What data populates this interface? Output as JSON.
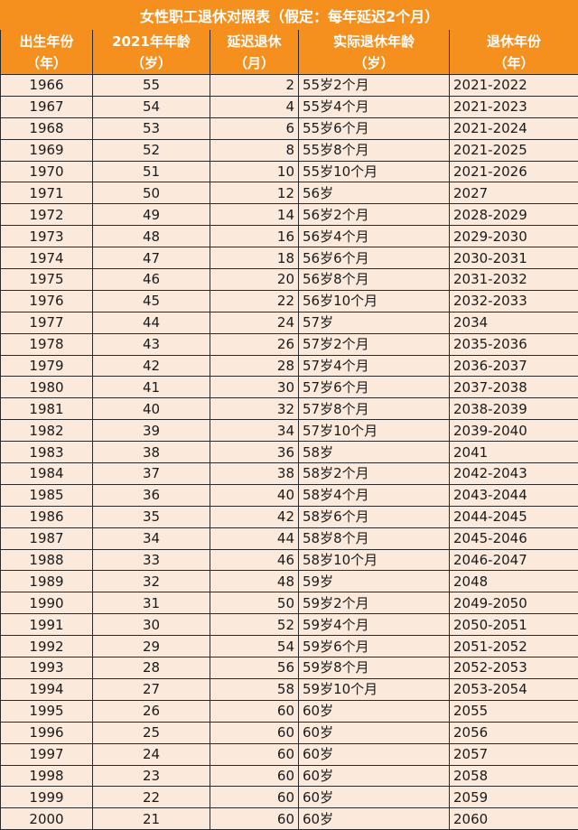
{
  "title": "女性职工退休对照表（假定：每年延迟2个月）",
  "colors": {
    "header_bg": "#f5901e",
    "row_bg": "#fbe9dc"
  },
  "headers": [
    [
      "出生年份",
      "（年）"
    ],
    [
      "2021年年龄",
      "（岁）"
    ],
    [
      "延迟退休",
      "（月）"
    ],
    [
      "实际退休年龄",
      "（岁）"
    ],
    [
      "退休年份",
      "（年）"
    ]
  ],
  "rows": [
    [
      "1966",
      "55",
      "2",
      "55岁2个月",
      "2021-2022"
    ],
    [
      "1967",
      "54",
      "4",
      "55岁4个月",
      "2021-2023"
    ],
    [
      "1968",
      "53",
      "6",
      "55岁6个月",
      "2021-2024"
    ],
    [
      "1969",
      "52",
      "8",
      "55岁8个月",
      "2021-2025"
    ],
    [
      "1970",
      "51",
      "10",
      "55岁10个月",
      "2021-2026"
    ],
    [
      "1971",
      "50",
      "12",
      "56岁",
      "2027"
    ],
    [
      "1972",
      "49",
      "14",
      "56岁2个月",
      "2028-2029"
    ],
    [
      "1973",
      "48",
      "16",
      "56岁4个月",
      "2029-2030"
    ],
    [
      "1974",
      "47",
      "18",
      "56岁6个月",
      "2030-2031"
    ],
    [
      "1975",
      "46",
      "20",
      "56岁8个月",
      "2031-2032"
    ],
    [
      "1976",
      "45",
      "22",
      "56岁10个月",
      "2032-2033"
    ],
    [
      "1977",
      "44",
      "24",
      "57岁",
      "2034"
    ],
    [
      "1978",
      "43",
      "26",
      "57岁2个月",
      "2035-2036"
    ],
    [
      "1979",
      "42",
      "28",
      "57岁4个月",
      "2036-2037"
    ],
    [
      "1980",
      "41",
      "30",
      "57岁6个月",
      "2037-2038"
    ],
    [
      "1981",
      "40",
      "32",
      "57岁8个月",
      "2038-2039"
    ],
    [
      "1982",
      "39",
      "34",
      "57岁10个月",
      "2039-2040"
    ],
    [
      "1983",
      "38",
      "36",
      "58岁",
      "2041"
    ],
    [
      "1984",
      "37",
      "38",
      "58岁2个月",
      "2042-2043"
    ],
    [
      "1985",
      "36",
      "40",
      "58岁4个月",
      "2043-2044"
    ],
    [
      "1986",
      "35",
      "42",
      "58岁6个月",
      "2044-2045"
    ],
    [
      "1987",
      "34",
      "44",
      "58岁8个月",
      "2045-2046"
    ],
    [
      "1988",
      "33",
      "46",
      "58岁10个月",
      "2046-2047"
    ],
    [
      "1989",
      "32",
      "48",
      "59岁",
      "2048"
    ],
    [
      "1990",
      "31",
      "50",
      "59岁2个月",
      "2049-2050"
    ],
    [
      "1991",
      "30",
      "52",
      "59岁4个月",
      "2050-2051"
    ],
    [
      "1992",
      "29",
      "54",
      "59岁6个月",
      "2051-2052"
    ],
    [
      "1993",
      "28",
      "56",
      "59岁8个月",
      "2052-2053"
    ],
    [
      "1994",
      "27",
      "58",
      "59岁10个月",
      "2053-2054"
    ],
    [
      "1995",
      "26",
      "60",
      "60岁",
      "2055"
    ],
    [
      "1996",
      "25",
      "60",
      "60岁",
      "2056"
    ],
    [
      "1997",
      "24",
      "60",
      "60岁",
      "2057"
    ],
    [
      "1998",
      "23",
      "60",
      "60岁",
      "2058"
    ],
    [
      "1999",
      "22",
      "60",
      "60岁",
      "2059"
    ],
    [
      "2000",
      "21",
      "60",
      "60岁",
      "2060"
    ]
  ]
}
